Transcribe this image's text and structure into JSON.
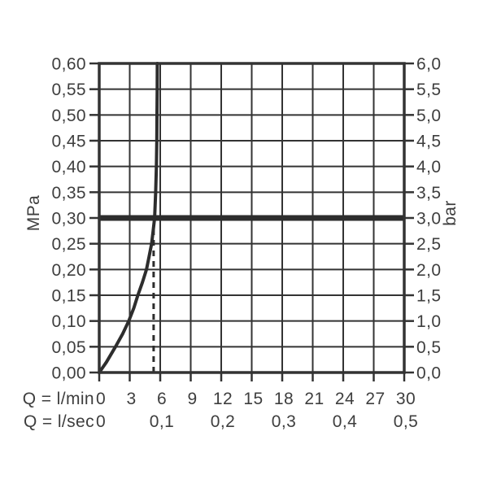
{
  "chart_data": {
    "type": "line",
    "title": "",
    "x_axis": {
      "primary_label": "Q = l/min",
      "secondary_label": "Q = l/sec",
      "xlim": [
        0,
        30
      ],
      "primary_ticks": [
        {
          "q": 0,
          "label": "0"
        },
        {
          "q": 3,
          "label": "3"
        },
        {
          "q": 6,
          "label": "6"
        },
        {
          "q": 9,
          "label": "9"
        },
        {
          "q": 12,
          "label": "12"
        },
        {
          "q": 15,
          "label": "15"
        },
        {
          "q": 18,
          "label": "18"
        },
        {
          "q": 21,
          "label": "21"
        },
        {
          "q": 24,
          "label": "24"
        },
        {
          "q": 27,
          "label": "27"
        },
        {
          "q": 30,
          "label": "30"
        }
      ],
      "secondary_ticks": [
        {
          "q": 0,
          "label": "0"
        },
        {
          "q": 6,
          "label": "0,1"
        },
        {
          "q": 12,
          "label": "0,2"
        },
        {
          "q": 18,
          "label": "0,3"
        },
        {
          "q": 24,
          "label": "0,4"
        },
        {
          "q": 30,
          "label": "0,5"
        }
      ]
    },
    "y_axis": {
      "left_label": "MPa",
      "right_label": "bar",
      "ylim_mpa": [
        0,
        0.6
      ],
      "ylim_bar": [
        0,
        6
      ],
      "ticks": [
        {
          "mpa": 0.6,
          "left_label": "0,60",
          "right_label": "6,0"
        },
        {
          "mpa": 0.55,
          "left_label": "0,55",
          "right_label": "5,5"
        },
        {
          "mpa": 0.5,
          "left_label": "0,50",
          "right_label": "5,0"
        },
        {
          "mpa": 0.45,
          "left_label": "0,45",
          "right_label": "4,5"
        },
        {
          "mpa": 0.4,
          "left_label": "0,40",
          "right_label": "4,0"
        },
        {
          "mpa": 0.35,
          "left_label": "0,35",
          "right_label": "3,5"
        },
        {
          "mpa": 0.3,
          "left_label": "0,30",
          "right_label": "3,0"
        },
        {
          "mpa": 0.25,
          "left_label": "0,25",
          "right_label": "2,5"
        },
        {
          "mpa": 0.2,
          "left_label": "0,20",
          "right_label": "2,0"
        },
        {
          "mpa": 0.15,
          "left_label": "0,15",
          "right_label": "1,5"
        },
        {
          "mpa": 0.1,
          "left_label": "0,10",
          "right_label": "1,0"
        },
        {
          "mpa": 0.05,
          "left_label": "0,05",
          "right_label": "0,5"
        },
        {
          "mpa": 0.0,
          "left_label": "0,00",
          "right_label": "0,0"
        }
      ]
    },
    "series": [
      {
        "name": "flow-pressure-curve",
        "points_q_lmin_vs_mpa": [
          [
            0,
            0
          ],
          [
            0.7,
            0.02
          ],
          [
            1.6,
            0.05
          ],
          [
            2.3,
            0.075
          ],
          [
            2.9,
            0.1
          ],
          [
            3.4,
            0.125
          ],
          [
            3.8,
            0.15
          ],
          [
            4.25,
            0.175
          ],
          [
            4.65,
            0.2
          ],
          [
            4.9,
            0.225
          ],
          [
            5.15,
            0.25
          ],
          [
            5.3,
            0.275
          ],
          [
            5.45,
            0.3
          ],
          [
            5.55,
            0.35
          ],
          [
            5.62,
            0.4
          ],
          [
            5.66,
            0.45
          ],
          [
            5.68,
            0.5
          ],
          [
            5.7,
            0.55
          ],
          [
            5.71,
            0.6
          ]
        ]
      }
    ],
    "reference_line_mpa": 0.3,
    "dashed_guide": {
      "q_lmin": 5.35,
      "mpa_from": 0,
      "mpa_to": 0.285
    },
    "grid": true,
    "legend": "none",
    "colors": {
      "grid_line": "#333333",
      "curve": "#2d2d2d",
      "reference_line": "#2d2d2d",
      "text": "#3e3e3e",
      "background": "#ffffff"
    }
  }
}
